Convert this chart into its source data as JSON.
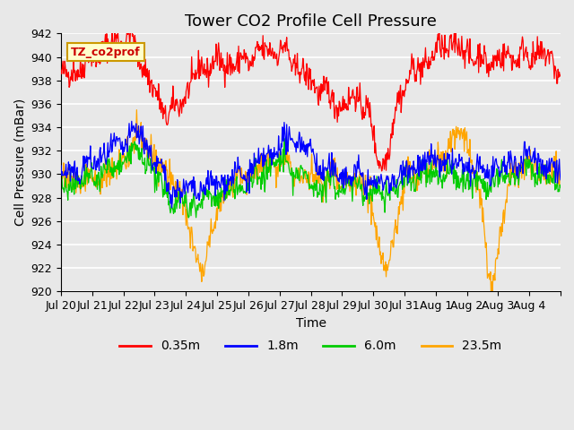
{
  "title": "Tower CO2 Profile Cell Pressure",
  "xlabel": "Time",
  "ylabel": "Cell Pressure (mBar)",
  "ylim": [
    920,
    942
  ],
  "yticks": [
    920,
    922,
    924,
    926,
    928,
    930,
    932,
    934,
    936,
    938,
    940,
    942
  ],
  "background_color": "#e8e8e8",
  "plot_bg_color": "#e8e8e8",
  "grid_color": "#ffffff",
  "series_colors": [
    "#ff0000",
    "#0000ff",
    "#00cc00",
    "#ffa500"
  ],
  "series_labels": [
    "0.35m",
    "1.8m",
    "6.0m",
    "23.5m"
  ],
  "legend_label": "TZ_co2prof",
  "legend_box_color": "#ffffcc",
  "legend_box_edge": "#cc9900",
  "n_points": 800,
  "xtick_positions": [
    0,
    1,
    2,
    3,
    4,
    5,
    6,
    7,
    8,
    9,
    10,
    11,
    12,
    13,
    14,
    15,
    16
  ],
  "xtick_labels": [
    "Jul 20",
    "Jul 21",
    "Jul 22",
    "Jul 23",
    "Jul 24",
    "Jul 25",
    "Jul 26",
    "Jul 27",
    "Jul 28",
    "Jul 29",
    "Jul 30",
    "Jul 31",
    "Aug 1",
    "Aug 2",
    "Aug 3",
    "Aug 4",
    ""
  ],
  "title_fontsize": 13,
  "axis_label_fontsize": 10,
  "tick_fontsize": 9
}
